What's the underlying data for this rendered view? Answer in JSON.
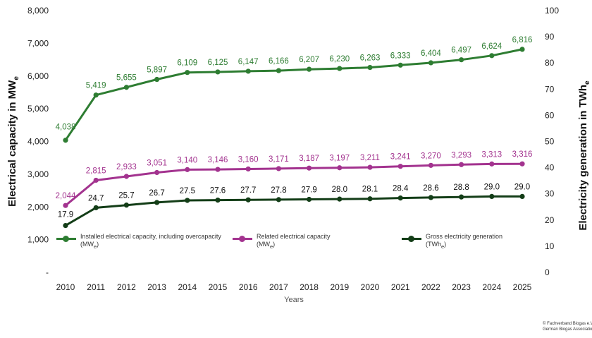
{
  "chart_data": {
    "type": "line",
    "x": [
      "2010",
      "2011",
      "2012",
      "2013",
      "2014",
      "2015",
      "2016",
      "2017",
      "2018",
      "2019",
      "2020",
      "2021",
      "2022",
      "2023",
      "2024",
      "2025"
    ],
    "xlabel": "Years",
    "ylabel": "Electrical capacity in MW",
    "ylabel_sub": "e",
    "y2label": "Electricity generation in TWh",
    "y2label_sub": "e",
    "ylim": [
      0,
      8000
    ],
    "y2lim": [
      0,
      100
    ],
    "yticks": [
      "-",
      "1,000",
      "2,000",
      "3,000",
      "4,000",
      "5,000",
      "6,000",
      "7,000",
      "8,000"
    ],
    "y2ticks": [
      "0",
      "10",
      "20",
      "30",
      "40",
      "50",
      "60",
      "70",
      "80",
      "90",
      "100"
    ],
    "series": [
      {
        "name": "Installed electrical capacity, including overcapacity",
        "unit_label": "(MW",
        "unit_sub": "e",
        "unit_close": ")",
        "axis": "left",
        "color": "#2e7d32",
        "values": [
          4038,
          5419,
          5655,
          5897,
          6109,
          6125,
          6147,
          6166,
          6207,
          6230,
          6263,
          6333,
          6404,
          6497,
          6624,
          6816
        ],
        "labels": [
          "4,038",
          "5,419",
          "5,655",
          "5,897",
          "6,109",
          "6,125",
          "6,147",
          "6,166",
          "6,207",
          "6,230",
          "6,263",
          "6,333",
          "6,404",
          "6,497",
          "6,624",
          "6,816"
        ]
      },
      {
        "name": "Related electrical capacity",
        "unit_label": "(MW",
        "unit_sub": "e",
        "unit_close": ")",
        "axis": "left",
        "color": "#a3338f",
        "values": [
          2044,
          2815,
          2933,
          3051,
          3140,
          3146,
          3160,
          3171,
          3187,
          3197,
          3211,
          3241,
          3270,
          3293,
          3313,
          3316
        ],
        "labels": [
          "2,044",
          "2,815",
          "2,933",
          "3,051",
          "3,140",
          "3,146",
          "3,160",
          "3,171",
          "3,187",
          "3,197",
          "3,211",
          "3,241",
          "3,270",
          "3,293",
          "3,313",
          "3,316"
        ]
      },
      {
        "name": "Gross electricity generation",
        "unit_label": "(TWh",
        "unit_sub": "e",
        "unit_close": ")",
        "axis": "right",
        "color": "#133d17",
        "values": [
          17.9,
          24.7,
          25.7,
          26.7,
          27.5,
          27.6,
          27.7,
          27.8,
          27.9,
          28.0,
          28.1,
          28.4,
          28.6,
          28.8,
          29.0,
          29.0
        ],
        "labels": [
          "17.9",
          "24.7",
          "25.7",
          "26.7",
          "27.5",
          "27.6",
          "27.7",
          "27.8",
          "27.9",
          "28.0",
          "28.1",
          "28.4",
          "28.6",
          "28.8",
          "29.0",
          "29.0"
        ]
      }
    ],
    "grid": false,
    "legend": "bottom"
  },
  "copyright": {
    "line1": "© Fachverband Biogas e.V.",
    "line2": "German Biogas Association"
  }
}
